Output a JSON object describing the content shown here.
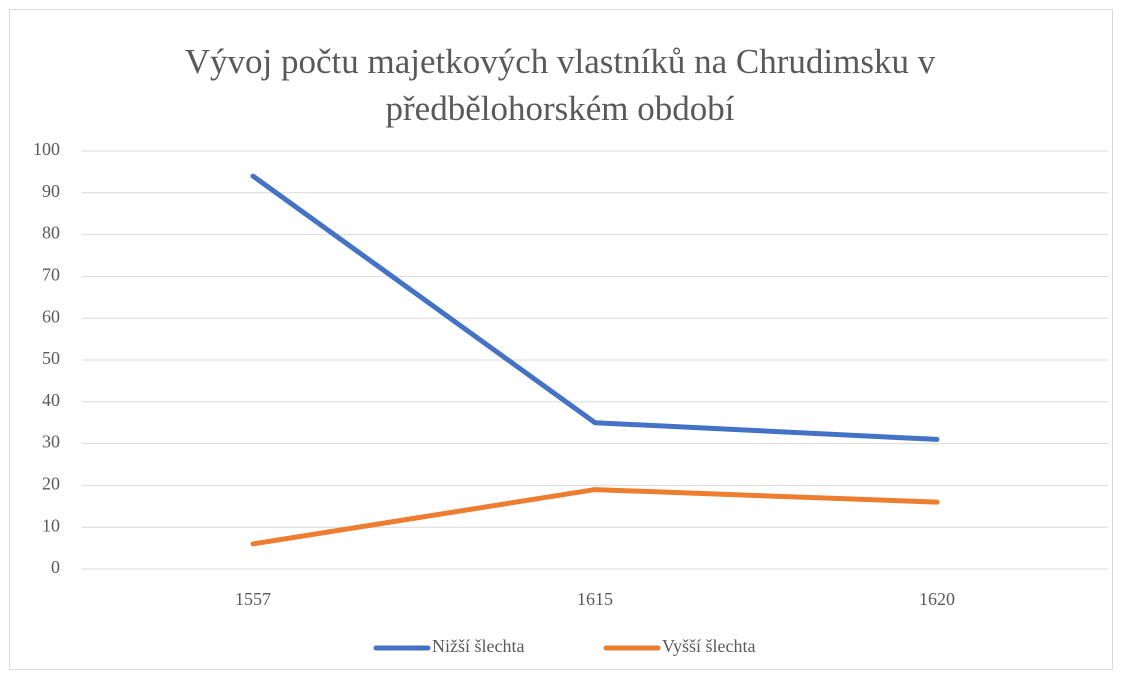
{
  "chart_data": {
    "type": "line",
    "title": "Vývoj počtu majetkových vlastníků na Chrudimsku v předbělohorském období",
    "categories": [
      "1557",
      "1615",
      "1620"
    ],
    "series": [
      {
        "name": "Nižší šlechta",
        "color": "#4472c4",
        "values": [
          94,
          35,
          31
        ]
      },
      {
        "name": "Vyšší šlechta",
        "color": "#ed7d31",
        "values": [
          6,
          19,
          16
        ]
      }
    ],
    "ylim": [
      0,
      100
    ],
    "yticks": [
      0,
      10,
      20,
      30,
      40,
      50,
      60,
      70,
      80,
      90,
      100
    ],
    "grid": true,
    "legend": "bottom"
  }
}
